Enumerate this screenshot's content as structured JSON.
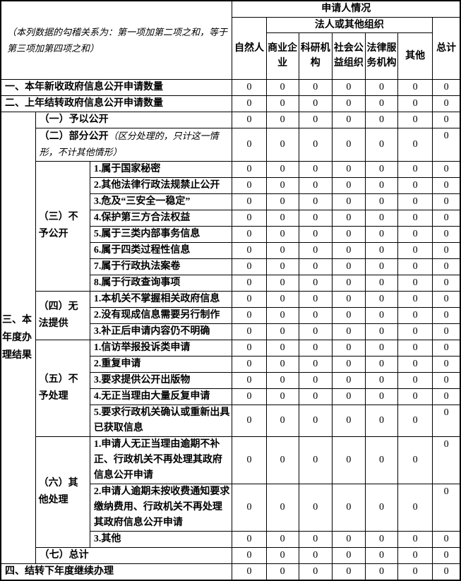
{
  "colors": {
    "background": "#ffffff",
    "border": "#000000",
    "text": "#000000"
  },
  "header": {
    "note": "（本列数据的勾稽关系为：第一项加第二项之和，等于第三项加第四项之和）",
    "applicant_title": "申请人情况",
    "legal_org_title": "法人或其他组织",
    "col_natural_person": "自然人",
    "col_total": "总计",
    "legal_org_cols": [
      "商业企业",
      "科研机构",
      "社会公益组织",
      "法律服务机构",
      "其他"
    ]
  },
  "rows": [
    {
      "label": "一、本年新收政府信息公开申请数量",
      "span": 3,
      "h": 22,
      "values": [
        "0",
        "0",
        "0",
        "0",
        "0",
        "0",
        "0"
      ]
    },
    {
      "label": "二、上年结转政府信息公开申请数量",
      "span": 3,
      "h": 22,
      "values": [
        "0",
        "0",
        "0",
        "0",
        "0",
        "0",
        "0"
      ]
    },
    {
      "l1": {
        "text": "三、本年度办理结果",
        "span": 22
      },
      "label": "（一）予以公开",
      "span": 2,
      "h": 22,
      "values": [
        "0",
        "0",
        "0",
        "0",
        "0",
        "0",
        "0"
      ]
    },
    {
      "label": "（二）部分公开",
      "note": "（区分处理的，只计这一情形，不计其他情形）",
      "span": 2,
      "h": 44,
      "top": true,
      "values": [
        "0",
        "0",
        "0",
        "0",
        "0",
        "0",
        "0"
      ]
    },
    {
      "l2": {
        "text": "（三）不予公开",
        "span": 8
      },
      "label": "1.属于国家秘密",
      "span": 1,
      "h": 22,
      "values": [
        "0",
        "0",
        "0",
        "0",
        "0",
        "0",
        "0"
      ]
    },
    {
      "label": "2.其他法律行政法规禁止公开",
      "span": 1,
      "h": 22,
      "values": [
        "0",
        "0",
        "0",
        "0",
        "0",
        "0",
        "0"
      ]
    },
    {
      "label": "3.危及“三安全一稳定”",
      "span": 1,
      "h": 22,
      "values": [
        "0",
        "0",
        "0",
        "0",
        "0",
        "0",
        "0"
      ]
    },
    {
      "label": "4.保护第三方合法权益",
      "span": 1,
      "h": 22,
      "values": [
        "0",
        "0",
        "0",
        "0",
        "0",
        "0",
        "0"
      ]
    },
    {
      "label": "5.属于三类内部事务信息",
      "span": 1,
      "h": 22,
      "values": [
        "0",
        "0",
        "0",
        "0",
        "0",
        "0",
        "0"
      ]
    },
    {
      "label": "6.属于四类过程性信息",
      "span": 1,
      "h": 22,
      "values": [
        "0",
        "0",
        "0",
        "0",
        "0",
        "0",
        "0"
      ]
    },
    {
      "label": "7.属于行政执法案卷",
      "span": 1,
      "h": 22,
      "values": [
        "0",
        "0",
        "0",
        "0",
        "0",
        "0",
        "0"
      ]
    },
    {
      "label": "8.属于行政查询事项",
      "span": 1,
      "h": 22,
      "values": [
        "0",
        "0",
        "0",
        "0",
        "0",
        "0",
        "0"
      ]
    },
    {
      "l2": {
        "text": "（四）无法提供",
        "span": 3
      },
      "label": "1.本机关不掌握相关政府信息",
      "span": 1,
      "h": 22,
      "values": [
        "0",
        "0",
        "0",
        "0",
        "0",
        "0",
        "0"
      ]
    },
    {
      "label": "2.没有现成信息需要另行制作",
      "span": 1,
      "h": 22,
      "values": [
        "0",
        "0",
        "0",
        "0",
        "0",
        "0",
        "0"
      ]
    },
    {
      "label": "3.补正后申请内容仍不明确",
      "span": 1,
      "h": 22,
      "values": [
        "0",
        "0",
        "0",
        "0",
        "0",
        "0",
        "0"
      ]
    },
    {
      "l2": {
        "text": "（五）不予处理",
        "span": 5
      },
      "label": "1.信访举报投诉类申请",
      "span": 1,
      "h": 22,
      "values": [
        "0",
        "0",
        "0",
        "0",
        "0",
        "0",
        "0"
      ]
    },
    {
      "label": "2.重复申请",
      "span": 1,
      "h": 22,
      "values": [
        "0",
        "0",
        "0",
        "0",
        "0",
        "0",
        "0"
      ]
    },
    {
      "label": "3.要求提供公开出版物",
      "span": 1,
      "h": 22,
      "values": [
        "0",
        "0",
        "0",
        "0",
        "0",
        "0",
        "0"
      ]
    },
    {
      "label": "4.无正当理由大量反复申请",
      "span": 1,
      "h": 22,
      "values": [
        "0",
        "0",
        "0",
        "0",
        "0",
        "0",
        "0"
      ]
    },
    {
      "label": "5.要求行政机关确认或重新出具已获取信息",
      "span": 1,
      "h": 44,
      "top": true,
      "values": [
        "0",
        "0",
        "0",
        "0",
        "0",
        "0",
        "0"
      ]
    },
    {
      "l2": {
        "text": "（六）其他处理",
        "span": 3
      },
      "label": "1.申请人无正当理由逾期不补正、行政机关不再处理其政府信息公开申请",
      "span": 1,
      "h": 66,
      "top": true,
      "values": [
        "0",
        "0",
        "0",
        "0",
        "0",
        "0",
        "0"
      ]
    },
    {
      "label": "2.申请人逾期未按收费通知要求缴纳费用、行政机关不再处理其政府信息公开申请",
      "span": 1,
      "h": 66,
      "top": true,
      "values": [
        "0",
        "0",
        "0",
        "0",
        "0",
        "0",
        "0"
      ]
    },
    {
      "label": "3.其他",
      "span": 1,
      "h": 22,
      "values": [
        "0",
        "0",
        "0",
        "0",
        "0",
        "0",
        "0"
      ]
    },
    {
      "label": "（七）总计",
      "span": 2,
      "h": 22,
      "values": [
        "0",
        "0",
        "0",
        "0",
        "0",
        "0",
        "0"
      ]
    },
    {
      "label": "四、结转下年度继续办理",
      "span": 3,
      "h": 24,
      "values": [
        "0",
        "0",
        "0",
        "0",
        "0",
        "0",
        "0"
      ]
    }
  ]
}
